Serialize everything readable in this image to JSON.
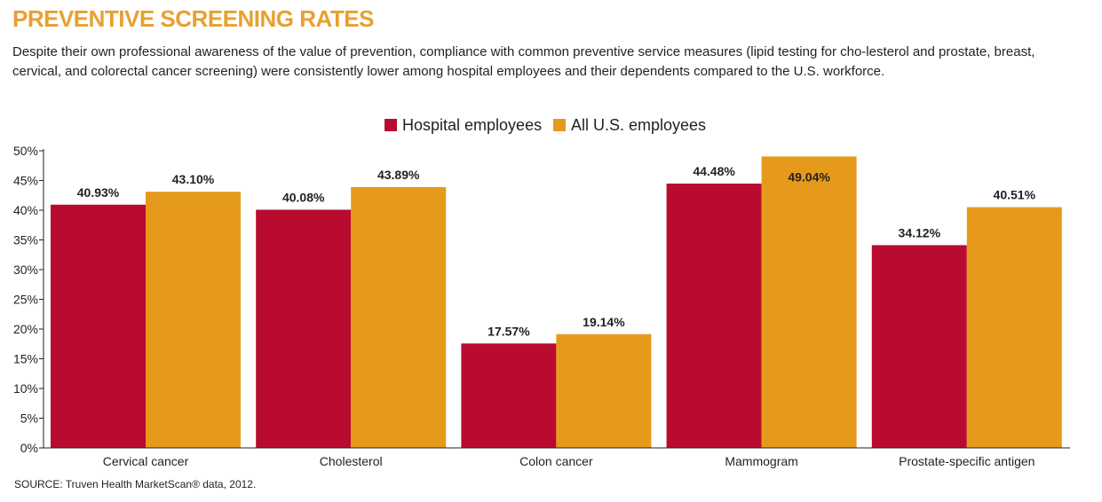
{
  "header": {
    "title": "PREVENTIVE SCREENING RATES",
    "subtitle": "Despite their own professional awareness of the value of prevention, compliance with common preventive service measures (lipid testing for cho-lesterol and prostate, breast, cervical, and colorectal cancer screening) were consistently lower among hospital employees and their dependents compared to the U.S. workforce."
  },
  "footer": {
    "source": "SOURCE: Truven Health MarketScan® data, 2012."
  },
  "colors": {
    "hospital": "#b80b2f",
    "all_us": "#e69a1c",
    "axis": "#231f20"
  },
  "chart_data": {
    "type": "bar",
    "title": "PREVENTIVE SCREENING RATES",
    "xlabel": "",
    "ylabel": "",
    "ylim": [
      0,
      50
    ],
    "yticks": [
      "0%",
      "5%",
      "10%",
      "15%",
      "20%",
      "25%",
      "30%",
      "35%",
      "40%",
      "45%",
      "50%"
    ],
    "grid": false,
    "legend_position": "top-center",
    "categories": [
      "Cervical cancer",
      "Cholesterol",
      "Colon cancer",
      "Mammogram",
      "Prostate-specific antigen"
    ],
    "series": [
      {
        "name": "Hospital employees",
        "values": [
          40.93,
          40.08,
          17.57,
          44.48,
          34.12
        ],
        "labels": [
          "40.93%",
          "40.08%",
          "17.57%",
          "44.48%",
          "34.12%"
        ]
      },
      {
        "name": "All U.S. employees",
        "values": [
          43.1,
          43.89,
          19.14,
          49.04,
          40.51
        ],
        "labels": [
          "43.10%",
          "43.89%",
          "19.14%",
          "49.04%",
          "40.51%"
        ]
      }
    ]
  }
}
